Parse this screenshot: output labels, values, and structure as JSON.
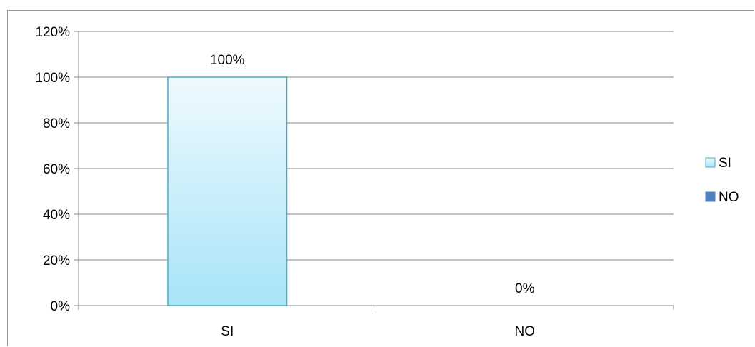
{
  "chart_data": {
    "type": "bar",
    "categories": [
      "SI",
      "NO"
    ],
    "series": [
      {
        "name": "SI",
        "values": [
          100,
          null
        ],
        "color": "#a8e4f8",
        "label_values": [
          "100%",
          ""
        ]
      },
      {
        "name": "NO",
        "values": [
          null,
          0
        ],
        "color": "#4f81bd",
        "label_values": [
          "",
          "0%"
        ]
      }
    ],
    "ylim": [
      0,
      120
    ],
    "yticks": [
      "0%",
      "20%",
      "40%",
      "60%",
      "80%",
      "100%",
      "120%"
    ],
    "ytick_values": [
      0,
      20,
      40,
      60,
      80,
      100,
      120
    ],
    "grid": true,
    "legend_position": "right",
    "title": "",
    "xlabel": "",
    "ylabel": ""
  },
  "legend": [
    {
      "label": "SI",
      "color": "#a8e4f8",
      "border": "#4bacc6"
    },
    {
      "label": "NO",
      "color": "#4f81bd",
      "border": "#4f81bd"
    }
  ]
}
